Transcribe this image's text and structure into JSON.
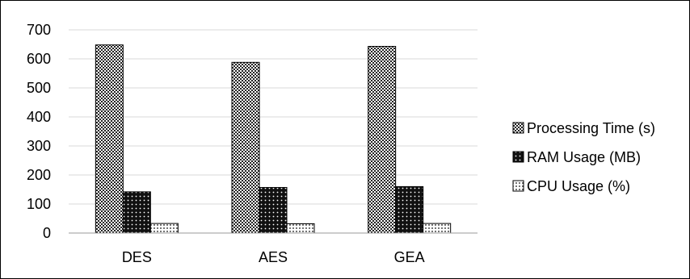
{
  "chart_data": {
    "type": "bar",
    "categories": [
      "DES",
      "AES",
      "GEA"
    ],
    "series": [
      {
        "name": "Processing Time (s)",
        "values": [
          648,
          588,
          643
        ]
      },
      {
        "name": "RAM Usage (MB)",
        "values": [
          142,
          157,
          160
        ]
      },
      {
        "name": "CPU Usage (%)",
        "values": [
          33,
          32,
          33
        ]
      }
    ],
    "ylim": [
      0,
      700
    ],
    "yticks": [
      "0",
      "100",
      "200",
      "300",
      "400",
      "500",
      "600",
      "700"
    ],
    "grid": true,
    "legend": "right",
    "title": "",
    "xlabel": "",
    "ylabel": ""
  }
}
